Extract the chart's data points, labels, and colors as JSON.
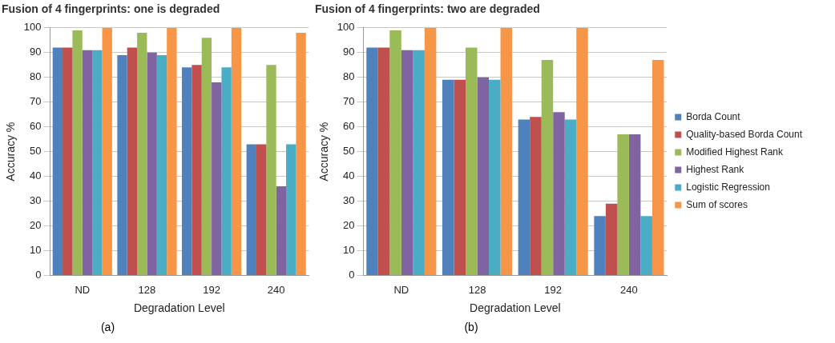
{
  "chart_data": [
    {
      "type": "bar",
      "title": "Fusion of 4 fingerprints: one is degraded",
      "xlabel": "Degradation Level",
      "ylabel": "Accuracy %",
      "categories": [
        "ND",
        "128",
        "192",
        "240"
      ],
      "ylim": [
        0,
        100
      ],
      "yticks": [
        0,
        10,
        20,
        30,
        40,
        50,
        60,
        70,
        80,
        90,
        100
      ],
      "grid": "y",
      "legend": false,
      "annotations": [
        "(a)"
      ],
      "series": [
        {
          "color": "#4f81bd",
          "values": [
            92,
            89,
            84,
            53
          ]
        },
        {
          "color": "#c0504d",
          "values": [
            92,
            92,
            85,
            53
          ]
        },
        {
          "color": "#9bbb59",
          "values": [
            99,
            98,
            96,
            85
          ]
        },
        {
          "color": "#8064a2",
          "values": [
            91,
            90,
            78,
            36
          ]
        },
        {
          "color": "#4bacc6",
          "values": [
            91,
            89,
            84,
            53
          ]
        },
        {
          "color": "#f79646",
          "values": [
            100,
            100,
            100,
            98
          ]
        }
      ]
    },
    {
      "type": "bar",
      "title": "Fusion of 4 fingerprints: two are degraded",
      "xlabel": "Degradation Level",
      "ylabel": "Accuracy %",
      "categories": [
        "ND",
        "128",
        "192",
        "240"
      ],
      "ylim": [
        0,
        100
      ],
      "yticks": [
        0,
        10,
        20,
        30,
        40,
        50,
        60,
        70,
        80,
        90,
        100
      ],
      "grid": "y",
      "legend": "right",
      "annotations": [
        "(b)"
      ],
      "series": [
        {
          "name": "Borda Count",
          "color": "#4f81bd",
          "values": [
            92,
            79,
            63,
            24
          ]
        },
        {
          "name": "Quality-based Borda Count",
          "color": "#c0504d",
          "values": [
            92,
            79,
            64,
            29
          ]
        },
        {
          "name": "Modified Highest Rank",
          "color": "#9bbb59",
          "values": [
            99,
            92,
            87,
            57
          ]
        },
        {
          "name": "Highest Rank",
          "color": "#8064a2",
          "values": [
            91,
            80,
            66,
            57
          ]
        },
        {
          "name": "Logistic Regression",
          "color": "#4bacc6",
          "values": [
            91,
            79,
            63,
            24
          ]
        },
        {
          "name": "Sum of scores",
          "color": "#f79646",
          "values": [
            100,
            100,
            100,
            87
          ]
        }
      ]
    }
  ]
}
